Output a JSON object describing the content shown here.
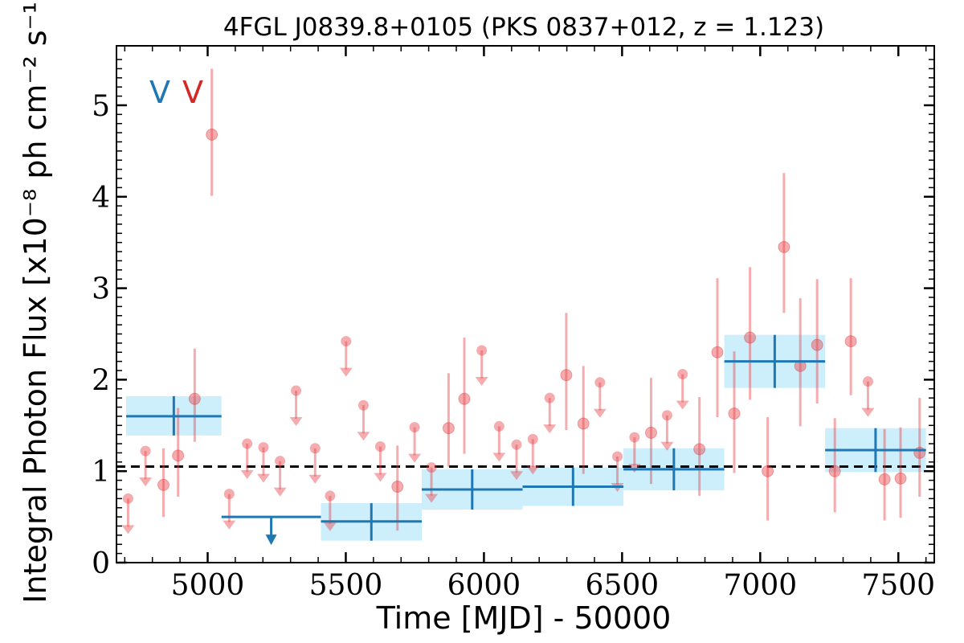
{
  "chart_data": {
    "type": "scatter",
    "title": "4FGL J0839.8+0105 (PKS 0837+012, z = 1.123)",
    "xlabel": "Time [MJD] - 50000",
    "ylabel": "Integral Photon Flux [x10⁻⁸ ph cm⁻² s⁻¹]",
    "xlim": [
      4670,
      7630
    ],
    "ylim": [
      0,
      5.65
    ],
    "xticks": [
      5000,
      5500,
      6000,
      6500,
      7000,
      7500
    ],
    "yticks": [
      0,
      1,
      2,
      3,
      4,
      5
    ],
    "legend": {
      "position": "top-left",
      "markers": [
        "V",
        "V"
      ]
    },
    "colors": {
      "fine": "#e8474e",
      "fine_alpha": 0.45,
      "coarse": "#1f77b4",
      "band": "#cdeefb",
      "mean_line": "#000000"
    },
    "mean_flux": 1.05,
    "series": [
      {
        "bin": "coarse",
        "bins": [
          {
            "x0": 4705,
            "x1": 5050,
            "y": 1.6,
            "yerr": [
              0.21,
              0.22
            ]
          },
          {
            "x0": 5050,
            "x1": 5410,
            "y": 0.5,
            "upper_limit": true
          },
          {
            "x0": 5410,
            "x1": 5775,
            "y": 0.45,
            "yerr": [
              0.21,
              0.2
            ]
          },
          {
            "x0": 5775,
            "x1": 6140,
            "y": 0.8,
            "yerr": [
              0.22,
              0.22
            ]
          },
          {
            "x0": 6140,
            "x1": 6505,
            "y": 0.83,
            "yerr": [
              0.21,
              0.21
            ]
          },
          {
            "x0": 6505,
            "x1": 6870,
            "y": 1.02,
            "yerr": [
              0.23,
              0.23
            ]
          },
          {
            "x0": 6870,
            "x1": 7235,
            "y": 2.2,
            "yerr": [
              0.29,
              0.29
            ]
          },
          {
            "x0": 7235,
            "x1": 7600,
            "y": 1.23,
            "yerr": [
              0.24,
              0.24
            ]
          }
        ]
      },
      {
        "bin": "fine",
        "points": [
          {
            "x": 4712,
            "y": 0.7,
            "ul": true
          },
          {
            "x": 4775,
            "y": 1.22,
            "ul": true
          },
          {
            "x": 4840,
            "y": 0.85,
            "yerr": [
              0.35,
              0.4
            ]
          },
          {
            "x": 4893,
            "y": 1.17,
            "yerr": [
              0.45,
              0.52
            ]
          },
          {
            "x": 4953,
            "y": 1.79,
            "yerr": [
              0.47,
              0.55
            ]
          },
          {
            "x": 5015,
            "y": 4.68,
            "yerr": [
              0.67,
              0.72
            ]
          },
          {
            "x": 5078,
            "y": 0.75,
            "ul": true
          },
          {
            "x": 5143,
            "y": 1.3,
            "ul": true
          },
          {
            "x": 5202,
            "y": 1.26,
            "ul": true
          },
          {
            "x": 5262,
            "y": 1.11,
            "ul": true
          },
          {
            "x": 5320,
            "y": 1.88,
            "ul": true
          },
          {
            "x": 5389,
            "y": 1.25,
            "ul": true
          },
          {
            "x": 5443,
            "y": 0.73,
            "ul": true
          },
          {
            "x": 5501,
            "y": 2.42,
            "ul": true
          },
          {
            "x": 5564,
            "y": 1.72,
            "ul": true
          },
          {
            "x": 5625,
            "y": 1.27,
            "ul": true
          },
          {
            "x": 5687,
            "y": 0.83,
            "yerr": [
              0.48,
              0.45
            ]
          },
          {
            "x": 5749,
            "y": 1.48,
            "ul": true
          },
          {
            "x": 5810,
            "y": 1.04,
            "ul": true
          },
          {
            "x": 5872,
            "y": 1.47,
            "yerr": [
              0.42,
              0.6
            ]
          },
          {
            "x": 5929,
            "y": 1.79,
            "yerr": [
              0.6,
              0.67
            ]
          },
          {
            "x": 5992,
            "y": 2.32,
            "ul": true
          },
          {
            "x": 6055,
            "y": 1.49,
            "ul": true
          },
          {
            "x": 6118,
            "y": 1.29,
            "ul": true
          },
          {
            "x": 6177,
            "y": 1.35,
            "ul": true
          },
          {
            "x": 6238,
            "y": 1.8,
            "ul": true
          },
          {
            "x": 6298,
            "y": 2.05,
            "yerr": [
              0.6,
              0.68
            ]
          },
          {
            "x": 6360,
            "y": 1.52,
            "yerr": [
              0.55,
              0.63
            ]
          },
          {
            "x": 6420,
            "y": 1.97,
            "ul": true
          },
          {
            "x": 6483,
            "y": 1.16,
            "ul": true
          },
          {
            "x": 6545,
            "y": 1.37,
            "ul": true
          },
          {
            "x": 6605,
            "y": 1.42,
            "yerr": [
              0.56,
              0.6
            ]
          },
          {
            "x": 6663,
            "y": 1.61,
            "ul": true
          },
          {
            "x": 6719,
            "y": 2.06,
            "ul": true
          },
          {
            "x": 6780,
            "y": 1.24,
            "yerr": [
              0.51,
              0.57
            ]
          },
          {
            "x": 6845,
            "y": 2.3,
            "yerr": [
              0.71,
              0.81
            ]
          },
          {
            "x": 6906,
            "y": 1.63,
            "yerr": [
              0.65,
              0.68
            ]
          },
          {
            "x": 6963,
            "y": 2.46,
            "yerr": [
              0.68,
              0.77
            ]
          },
          {
            "x": 7027,
            "y": 1.0,
            "yerr": [
              0.54,
              0.59
            ]
          },
          {
            "x": 7086,
            "y": 3.45,
            "yerr": [
              0.72,
              0.81
            ]
          },
          {
            "x": 7145,
            "y": 2.15,
            "yerr": [
              0.66,
              0.74
            ]
          },
          {
            "x": 7206,
            "y": 2.38,
            "yerr": [
              0.64,
              0.72
            ]
          },
          {
            "x": 7270,
            "y": 1.0,
            "yerr": [
              0.45,
              0.58
            ]
          },
          {
            "x": 7328,
            "y": 2.42,
            "yerr": [
              0.59,
              0.69
            ]
          },
          {
            "x": 7390,
            "y": 1.98,
            "ul": true
          },
          {
            "x": 7450,
            "y": 0.91,
            "yerr": [
              0.45,
              0.55
            ]
          },
          {
            "x": 7508,
            "y": 0.92,
            "yerr": [
              0.43,
              0.56
            ]
          },
          {
            "x": 7577,
            "y": 1.2,
            "yerr": [
              0.48,
              0.6
            ]
          }
        ]
      }
    ]
  }
}
